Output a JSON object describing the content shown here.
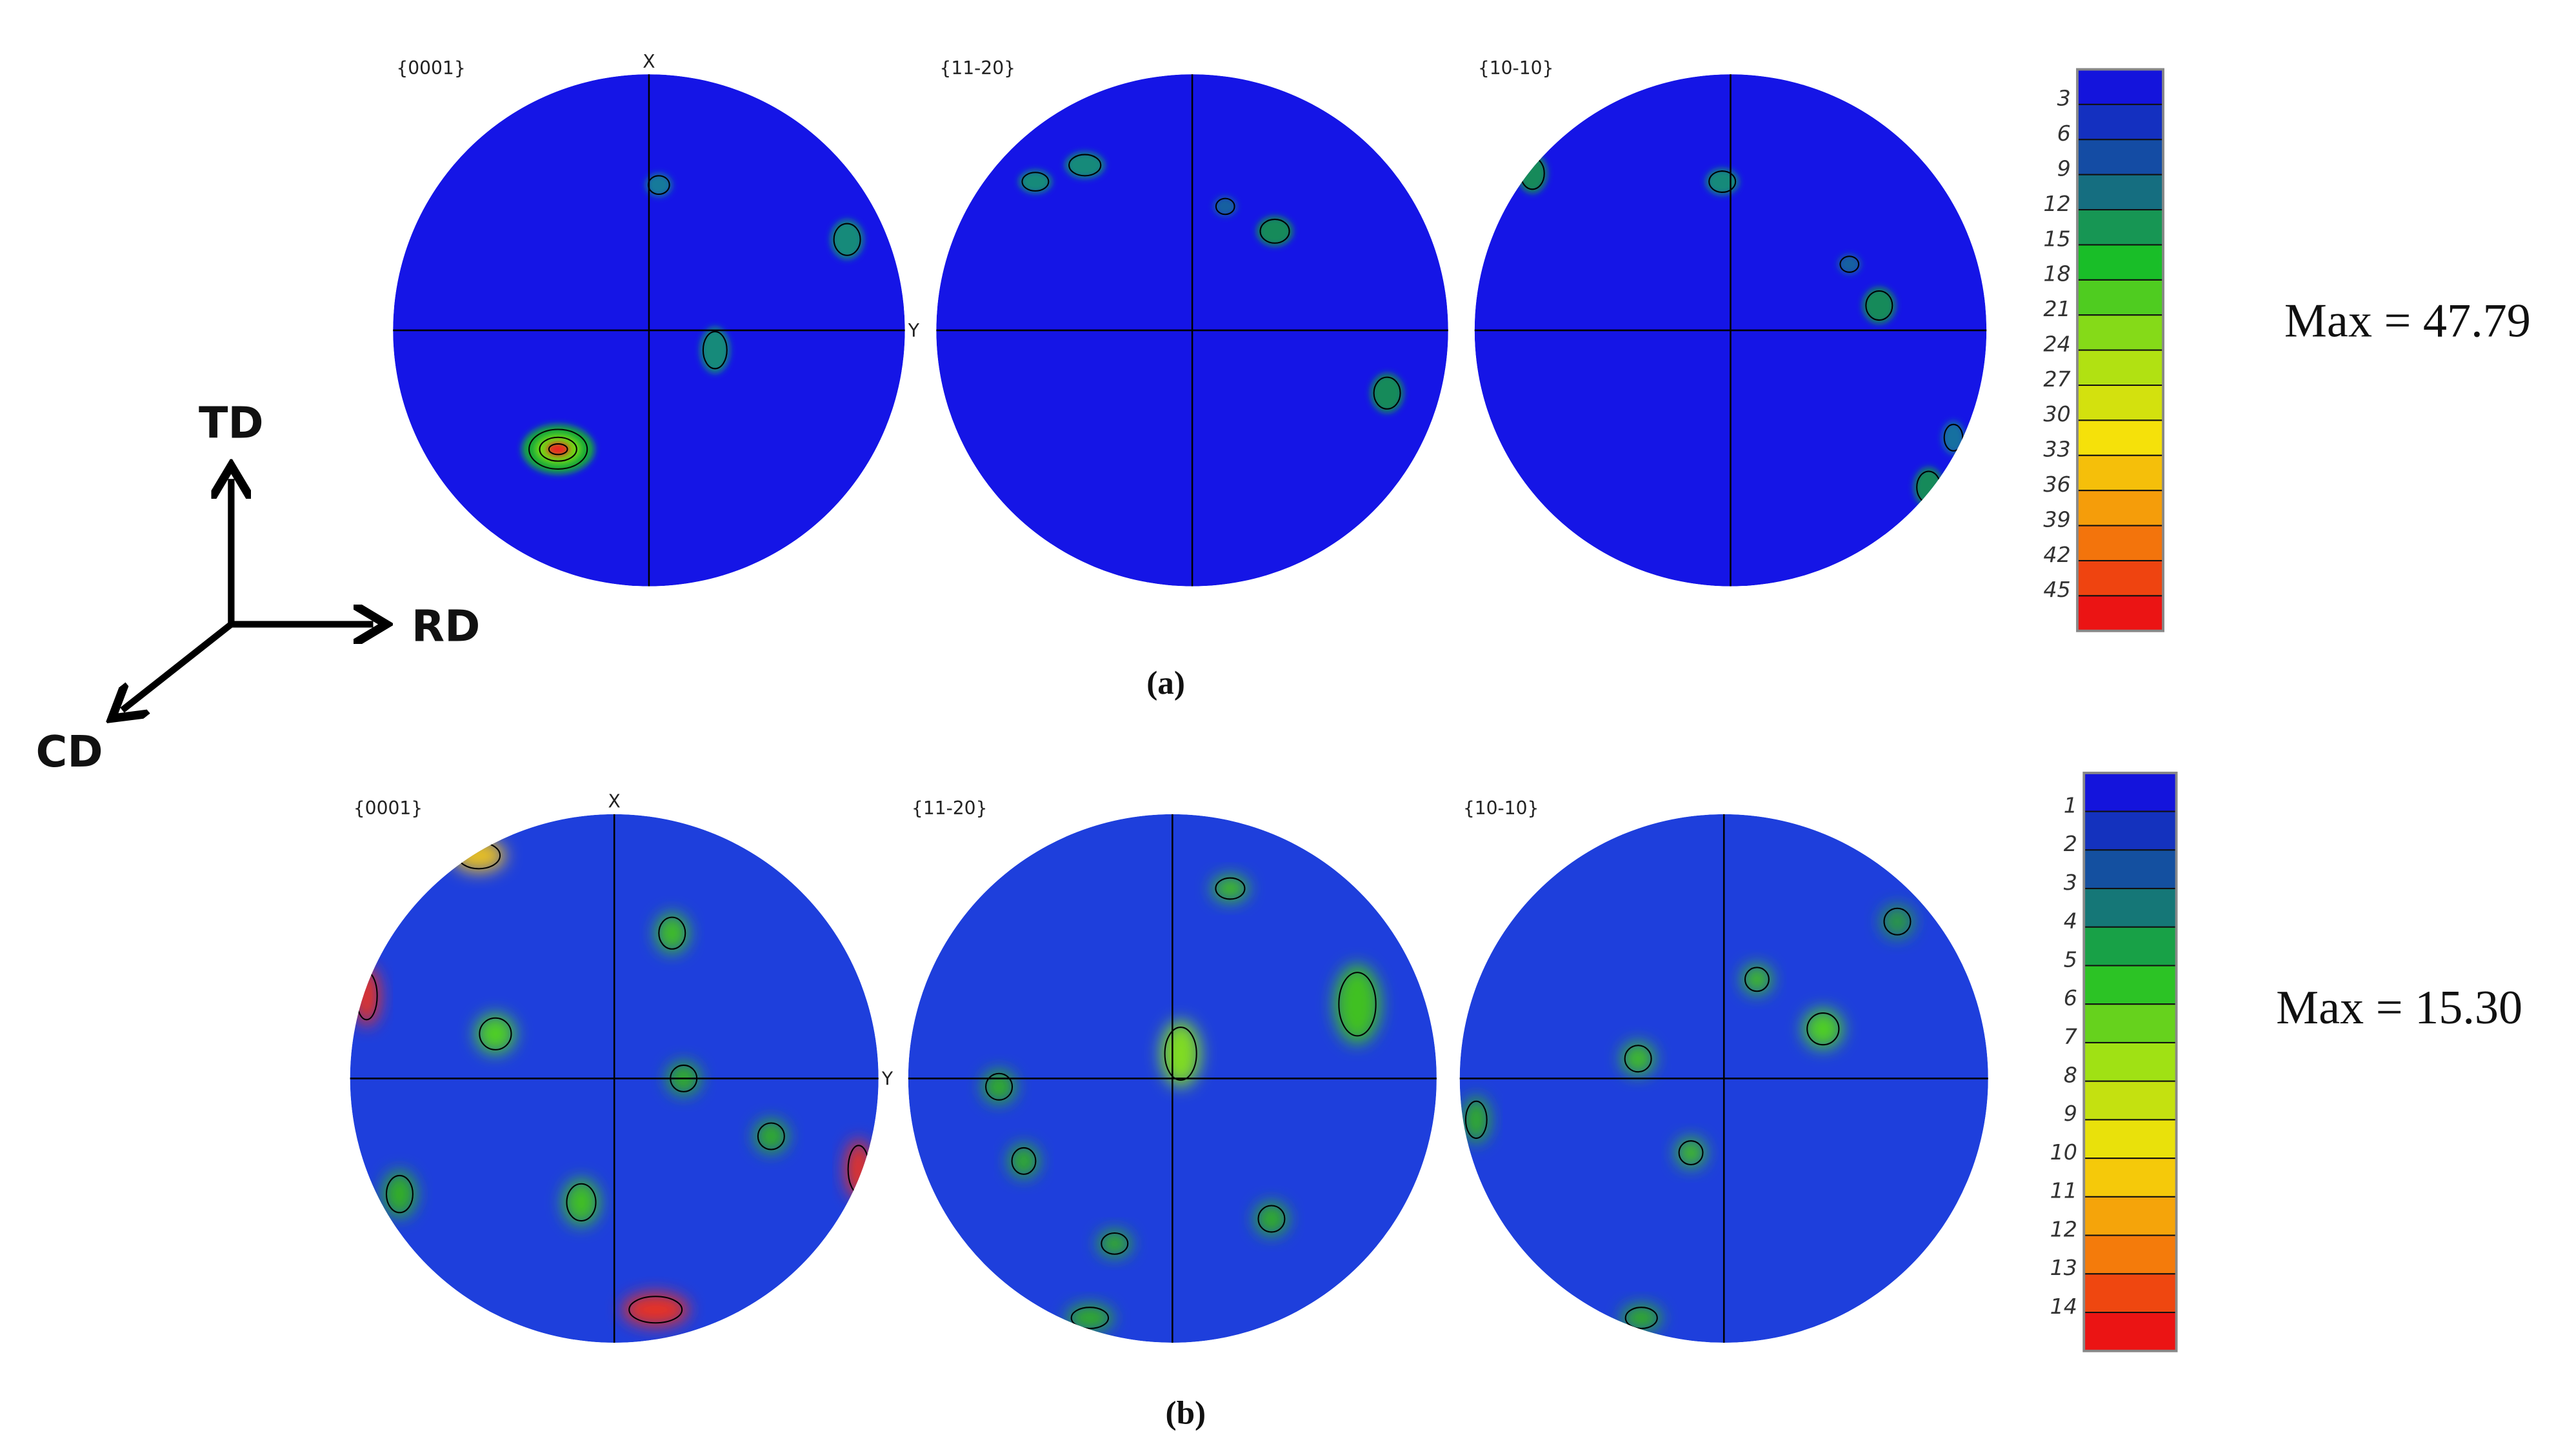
{
  "panels": [
    {
      "caption": "(a)",
      "max_label": "Max = 47.79",
      "axis_x": "X",
      "axis_y": "Y",
      "plots": [
        {
          "label": "{0001}"
        },
        {
          "label": "{11-20}"
        },
        {
          "label": "{10-10}"
        }
      ],
      "colorbar_ticks": [
        3,
        6,
        9,
        12,
        15,
        18,
        21,
        24,
        27,
        30,
        33,
        36,
        39,
        42,
        45
      ]
    },
    {
      "caption": "(b)",
      "max_label": "Max = 15.30",
      "axis_x": "X",
      "axis_y": "Y",
      "plots": [
        {
          "label": "{0001}"
        },
        {
          "label": "{11-20}"
        },
        {
          "label": "{10-10}"
        }
      ],
      "colorbar_ticks": [
        1,
        2,
        3,
        4,
        5,
        6,
        7,
        8,
        9,
        10,
        11,
        12,
        13,
        14
      ]
    }
  ],
  "axes": {
    "td": "TD",
    "rd": "RD",
    "cd": "CD"
  }
}
